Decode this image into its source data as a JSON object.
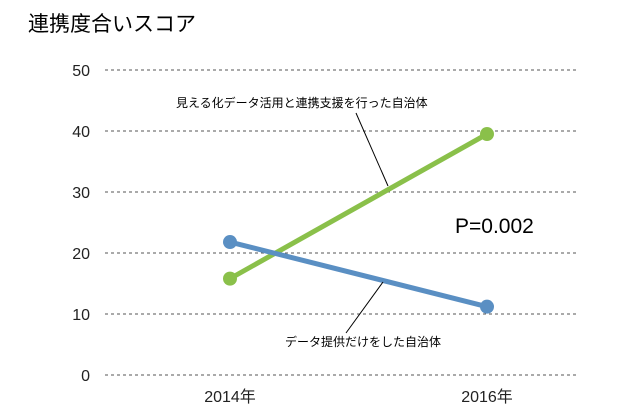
{
  "chart_data": {
    "type": "line",
    "title": "連携度合いスコア",
    "categories": [
      "2014年",
      "2016年"
    ],
    "ylim": [
      0,
      50
    ],
    "yticks": [
      0,
      10,
      20,
      30,
      40,
      50
    ],
    "grid": true,
    "series": [
      {
        "name": "見える化データ活用と連携支援を行った自治体",
        "values": [
          15.8,
          39.5
        ],
        "color": "#8ac04a"
      },
      {
        "name": "データ提供だけをした自治体",
        "values": [
          21.8,
          11.2
        ],
        "color": "#5a8fc3"
      }
    ],
    "annotations": [
      {
        "text": "P=0.002"
      }
    ]
  }
}
